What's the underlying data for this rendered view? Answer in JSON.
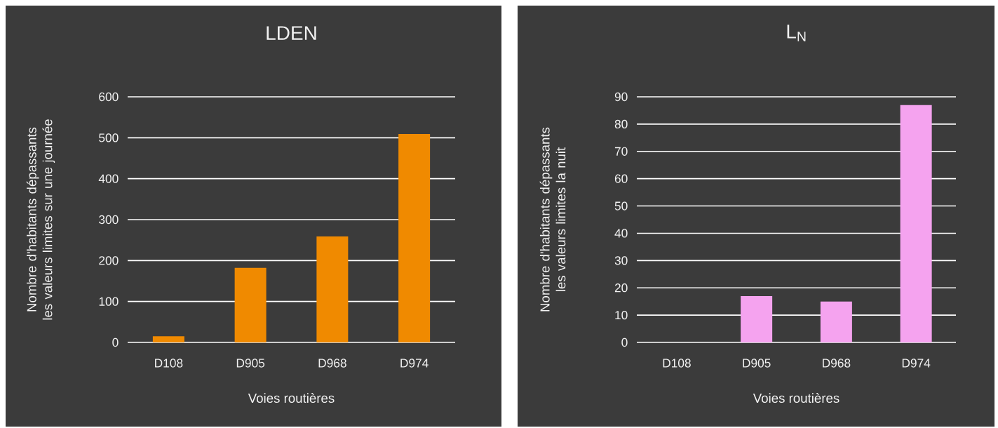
{
  "chart_data": [
    {
      "type": "bar",
      "title": "LDEN",
      "xlabel": "Voies routières",
      "ylabel": "Nombre d'habitants dépassants les valeurs limites sur une journée",
      "categories": [
        "D108",
        "D905",
        "D968",
        "D974"
      ],
      "values": [
        15,
        182,
        259,
        509
      ],
      "color": "#f08a00",
      "ylim": [
        0,
        600
      ],
      "yticks": [
        0,
        100,
        200,
        300,
        400,
        500,
        600
      ],
      "grid": "y"
    },
    {
      "type": "bar",
      "title": "L$_{N}$",
      "xlabel": "Voies routières",
      "ylabel": "Nombre d'habitants dépassants les valeurs limites la nuit",
      "categories": [
        "D108",
        "D905",
        "D968",
        "D974"
      ],
      "values": [
        0,
        17,
        15,
        87
      ],
      "color": "#f5a3ef",
      "ylim": [
        0,
        90
      ],
      "yticks": [
        0,
        10,
        20,
        30,
        40,
        50,
        60,
        70,
        80,
        90
      ],
      "grid": "y"
    }
  ]
}
